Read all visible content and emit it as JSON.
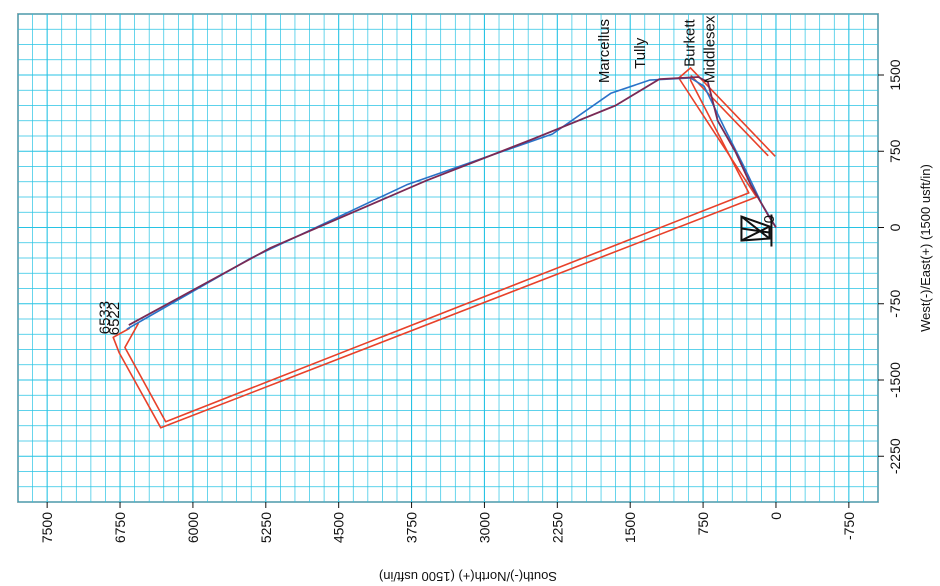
{
  "chart_data": {
    "type": "line",
    "title": "",
    "xlabel": "South(-)/North(+) (1500 usft/in)",
    "ylabel": "West(-)/East(+) (1500 usft/in)",
    "xlim": [
      7800,
      -1050
    ],
    "ylim": [
      -2700,
      2100
    ],
    "x_ticks": [
      7500,
      6750,
      6000,
      5250,
      4500,
      3750,
      3000,
      2250,
      1500,
      750,
      0,
      -750
    ],
    "x_tick_labels": [
      "7500",
      "6750",
      "6000",
      "5250",
      "4500",
      "3750",
      "3000",
      "2250",
      "1500",
      "750",
      "0",
      "-750"
    ],
    "y_ticks": [
      1500,
      750,
      0,
      -750,
      -1500,
      -2250
    ],
    "y_tick_labels": [
      "1500",
      "750",
      "0",
      "-750",
      "-1500",
      "-2250"
    ],
    "grid": true,
    "colors": {
      "grid": "#27c3e4",
      "boundary": "#e8412a",
      "plan_path": "#2a72c8",
      "actual_path": "#7a2a55",
      "rig": "#111111"
    },
    "series": [
      {
        "name": "",
        "role": "outer-boundary",
        "points": [
          [
            7.5,
            700
          ],
          [
            880,
            1570
          ],
          [
            1000,
            1470
          ],
          [
            200,
            300
          ],
          [
            6330,
            -1970
          ],
          [
            6760,
            -1230
          ],
          [
            6820,
            -1080
          ],
          [
            6650,
            -990
          ]
        ]
      },
      {
        "name": "",
        "role": "inner-boundary",
        "points": [
          [
            80,
            705
          ],
          [
            870,
            1490
          ],
          [
            880,
            1450
          ],
          [
            280,
            340
          ],
          [
            6280,
            -1910
          ],
          [
            6700,
            -1180
          ],
          [
            6560,
            -940
          ]
        ]
      },
      {
        "name": "6533",
        "role": "planned-wellpath",
        "points": [
          [
            0,
            0
          ],
          [
            150,
            240
          ],
          [
            330,
            600
          ],
          [
            520,
            960
          ],
          [
            740,
            1390
          ],
          [
            880,
            1470
          ],
          [
            1300,
            1450
          ],
          [
            1700,
            1320
          ],
          [
            2300,
            920
          ],
          [
            3800,
            420
          ],
          [
            5400,
            -300
          ],
          [
            6680,
            -1000
          ]
        ]
      },
      {
        "name": "6522",
        "role": "actual-wellpath",
        "points": [
          [
            0,
            0
          ],
          [
            80,
            120
          ],
          [
            260,
            420
          ],
          [
            420,
            750
          ],
          [
            600,
            1050
          ],
          [
            700,
            1430
          ],
          [
            800,
            1480
          ],
          [
            1200,
            1460
          ],
          [
            1650,
            1200
          ],
          [
            2500,
            870
          ],
          [
            3600,
            460
          ],
          [
            5200,
            -200
          ],
          [
            6660,
            -960
          ]
        ]
      }
    ],
    "annotations": [
      {
        "text": "Marcellus",
        "x": 1720,
        "y": 1420
      },
      {
        "text": "Tully",
        "x": 1350,
        "y": 1560
      },
      {
        "text": "Burkett",
        "x": 840,
        "y": 1580
      },
      {
        "text": "Middlesex",
        "x": 630,
        "y": 1420
      },
      {
        "text": "6533",
        "x": 6860,
        "y": -1050
      },
      {
        "text": "6522",
        "x": 6760,
        "y": -1060
      },
      {
        "text": "0",
        "x": 20,
        "y": 40
      }
    ],
    "markers": [
      {
        "type": "rig-icon",
        "x": 170,
        "y": -10
      }
    ]
  }
}
